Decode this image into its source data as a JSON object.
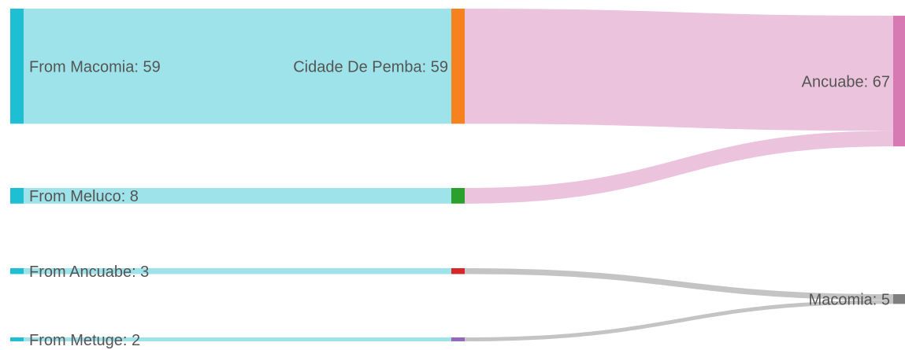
{
  "chart_data": {
    "type": "sankey",
    "nodes": [
      {
        "label": "From Macomia: 59",
        "value": 59,
        "color": "#1fbfd3"
      },
      {
        "label": "From Meluco: 8",
        "value": 8,
        "color": "#1fbfd3"
      },
      {
        "label": "From Ancuabe: 3",
        "value": 3,
        "color": "#1fbfd3"
      },
      {
        "label": "From Metuge: 2",
        "value": 2,
        "color": "#1fbfd3"
      },
      {
        "label": "Cidade De Pemba: 59",
        "value": 59,
        "color": "#f5821f"
      },
      {
        "label": null,
        "value": 8,
        "color": "#2ca02c"
      },
      {
        "label": null,
        "value": 3,
        "color": "#d62728"
      },
      {
        "label": null,
        "value": 2,
        "color": "#9467bd"
      },
      {
        "label": "Ancuabe: 67",
        "value": 67,
        "color": "#d779b3"
      },
      {
        "label": "Macomia: 5",
        "value": 5,
        "color": "#7f7f7f"
      }
    ],
    "links": [
      {
        "source": 0,
        "target": 4,
        "value": 59,
        "color": "#9ee3ea"
      },
      {
        "source": 1,
        "target": 5,
        "value": 8,
        "color": "#9ee3ea"
      },
      {
        "source": 2,
        "target": 6,
        "value": 3,
        "color": "#9ee3ea"
      },
      {
        "source": 3,
        "target": 7,
        "value": 2,
        "color": "#9ee3ea"
      },
      {
        "source": 4,
        "target": 8,
        "value": 59,
        "color": "#ecc3dc"
      },
      {
        "source": 5,
        "target": 8,
        "value": 8,
        "color": "#ecc3dc"
      },
      {
        "source": 6,
        "target": 9,
        "value": 3,
        "color": "#c4c4c4"
      },
      {
        "source": 7,
        "target": 9,
        "value": 2,
        "color": "#c4c4c4"
      }
    ]
  }
}
